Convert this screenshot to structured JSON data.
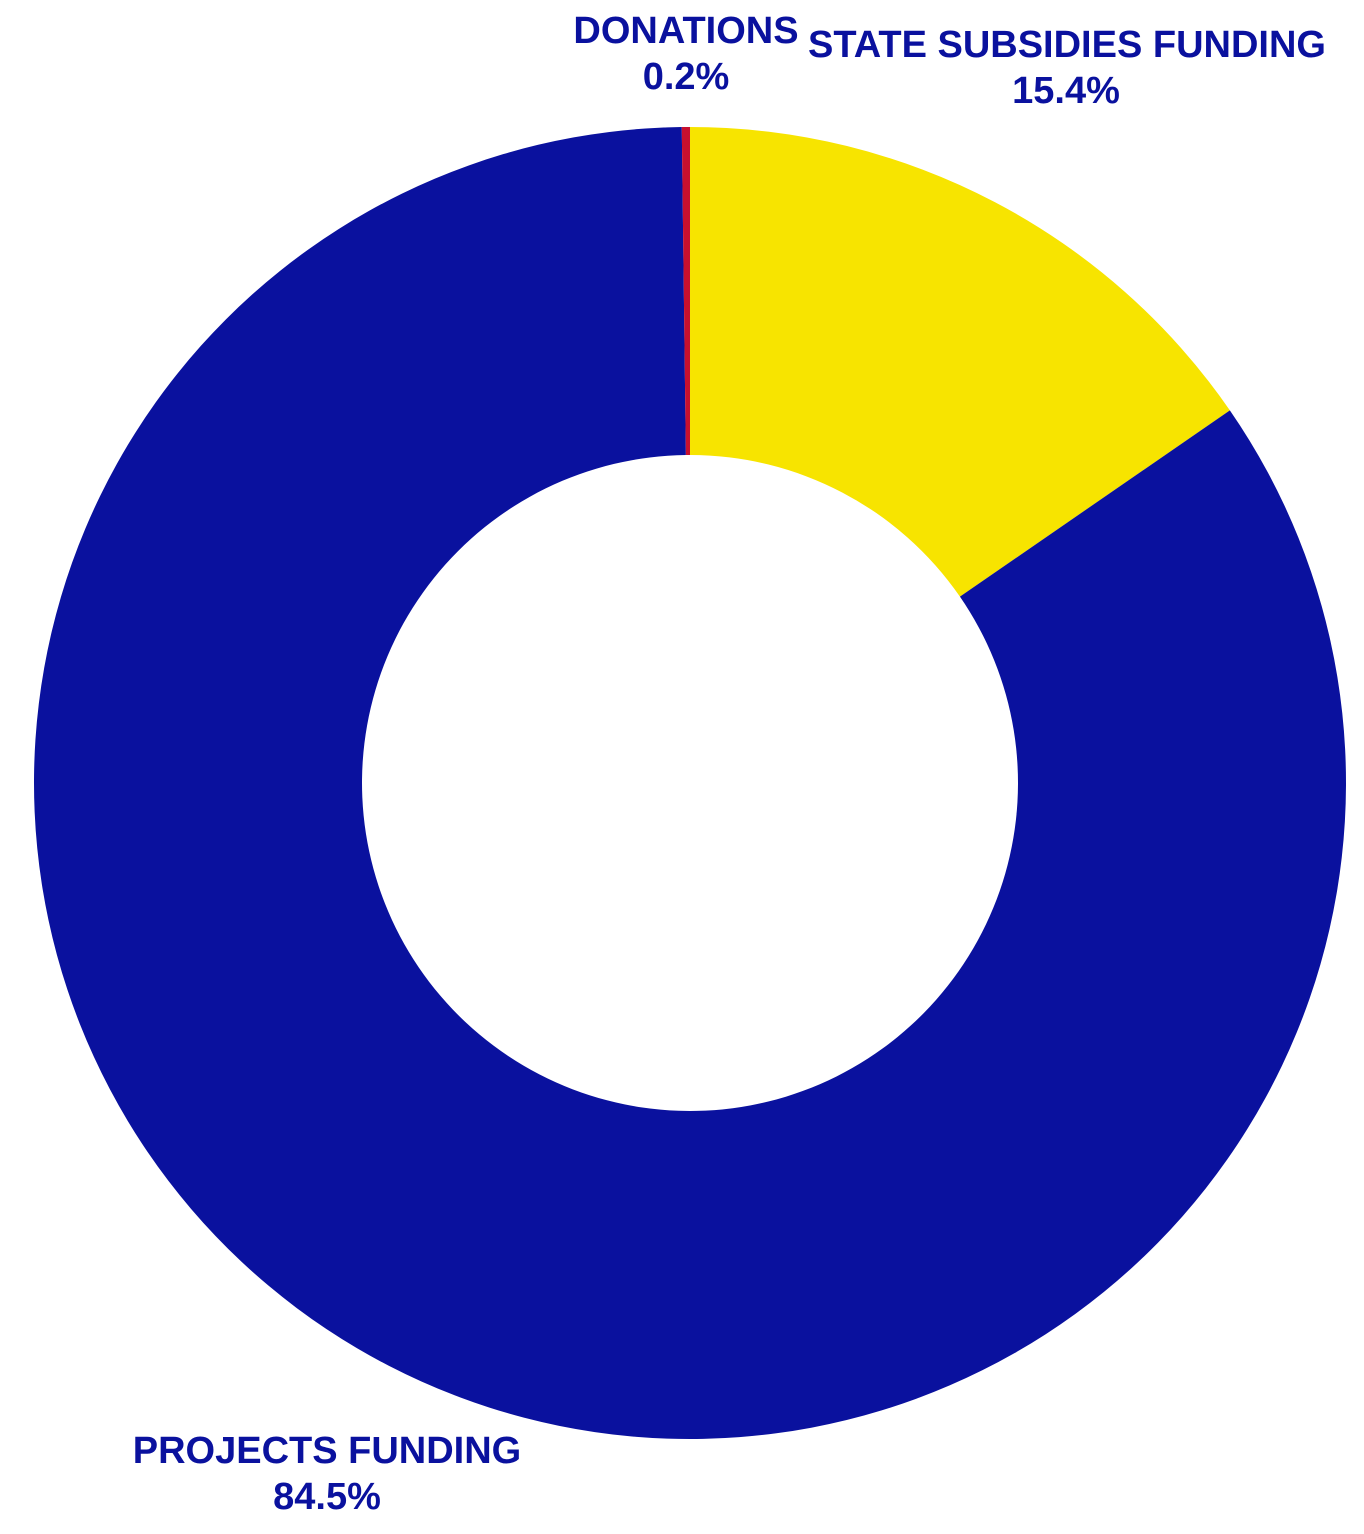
{
  "chart_data": {
    "type": "pie",
    "donut": true,
    "start": "top",
    "direction": "clockwise",
    "slices": [
      {
        "label": "STATE SUBSIDIES FUNDING",
        "value": 15.4,
        "display": "15.4%",
        "color": "#f7e400"
      },
      {
        "label": "PROJECTS FUNDING",
        "value": 84.5,
        "display": "84.5%",
        "color": "#0a119e"
      },
      {
        "label": "DONATIONS",
        "value": 0.2,
        "display": "0.2%",
        "color": "#c8102e"
      }
    ],
    "label_color": "#0a119e"
  }
}
